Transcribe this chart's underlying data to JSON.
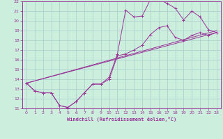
{
  "xlabel": "Windchill (Refroidissement éolien,°C)",
  "xlim": [
    -0.5,
    23.5
  ],
  "ylim": [
    11,
    22
  ],
  "xticks": [
    0,
    1,
    2,
    3,
    4,
    5,
    6,
    7,
    8,
    9,
    10,
    11,
    12,
    13,
    14,
    15,
    16,
    17,
    18,
    19,
    20,
    21,
    22,
    23
  ],
  "yticks": [
    11,
    12,
    13,
    14,
    15,
    16,
    17,
    18,
    19,
    20,
    21,
    22
  ],
  "bg_color": "#cceedd",
  "grid_color": "#aacccc",
  "line_color": "#993399",
  "line1_x": [
    0,
    1,
    2,
    3,
    4,
    5,
    6,
    7,
    8,
    9,
    10,
    11,
    12,
    13,
    14,
    15,
    16,
    17,
    18,
    19,
    20,
    21,
    22,
    23
  ],
  "line1_y": [
    13.6,
    12.8,
    12.6,
    12.6,
    11.3,
    11.1,
    11.7,
    12.6,
    13.5,
    13.5,
    14.2,
    16.6,
    21.1,
    20.4,
    20.5,
    22.2,
    22.2,
    21.8,
    21.3,
    20.1,
    21.0,
    20.4,
    19.1,
    18.8
  ],
  "line2_x": [
    0,
    1,
    2,
    3,
    4,
    5,
    6,
    7,
    8,
    9,
    10,
    11,
    12,
    13,
    14,
    15,
    16,
    17,
    18,
    19,
    20,
    21,
    22,
    23
  ],
  "line2_y": [
    13.6,
    12.8,
    12.6,
    12.6,
    11.3,
    11.1,
    11.7,
    12.6,
    13.5,
    13.5,
    14.0,
    16.4,
    16.6,
    17.0,
    17.5,
    18.6,
    19.3,
    19.5,
    18.3,
    18.0,
    18.5,
    18.8,
    18.5,
    18.8
  ],
  "line3_x": [
    0,
    23
  ],
  "line3_y": [
    13.6,
    18.8
  ],
  "line4_x": [
    0,
    23
  ],
  "line4_y": [
    13.6,
    19.0
  ]
}
